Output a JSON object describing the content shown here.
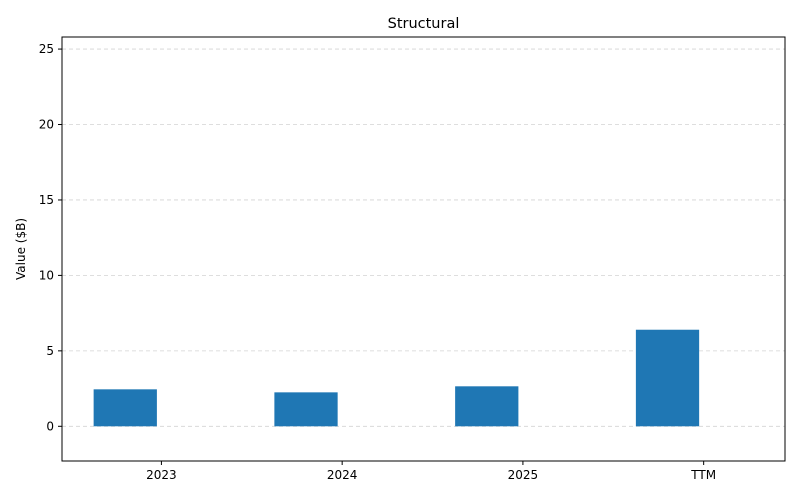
{
  "chart_data": {
    "type": "bar",
    "title": "Structural",
    "xlabel": "",
    "ylabel": "Value ($B)",
    "categories": [
      "2023",
      "2024",
      "2025",
      "TTM"
    ],
    "values": [
      2.45,
      2.25,
      2.65,
      6.4
    ],
    "ylim": [
      -2.3,
      25.8
    ],
    "yticks": [
      0,
      5,
      10,
      15,
      20,
      25
    ],
    "grid": true,
    "bar_color": "#1f77b4"
  }
}
